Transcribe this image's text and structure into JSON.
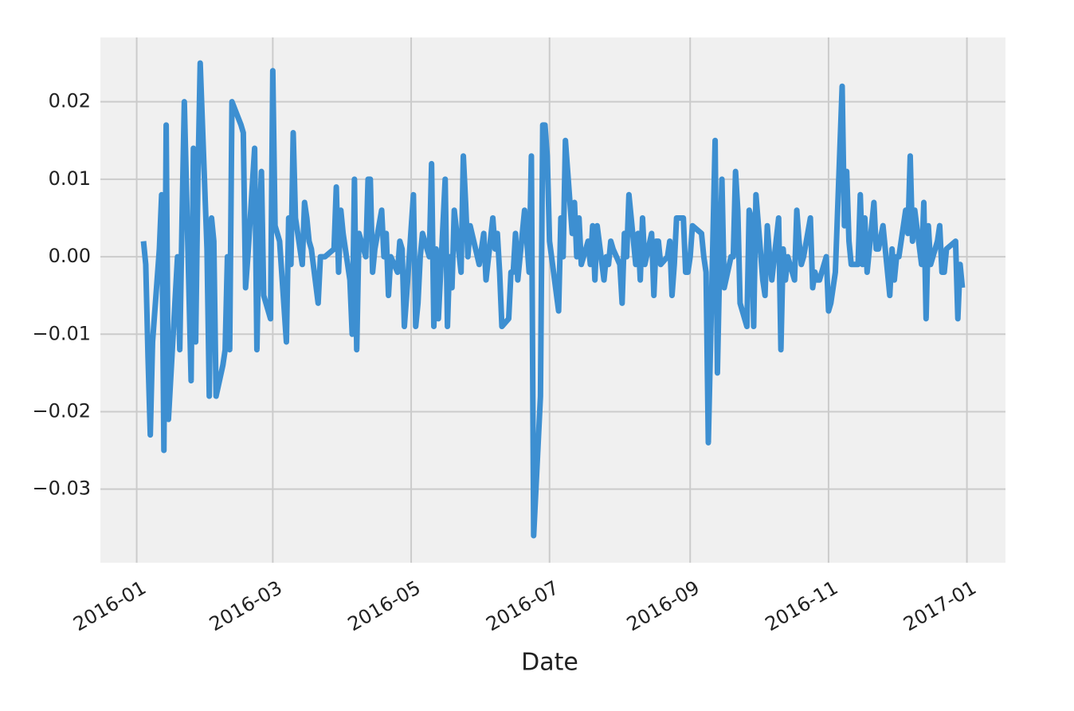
{
  "chart_data": {
    "type": "line",
    "xlabel": "Date",
    "color": "#3d8fd1",
    "grid": true,
    "x": [
      "2016-01-04",
      "2016-01-05",
      "2016-01-06",
      "2016-01-07",
      "2016-01-08",
      "2016-01-11",
      "2016-01-12",
      "2016-01-13",
      "2016-01-14",
      "2016-01-15",
      "2016-01-19",
      "2016-01-20",
      "2016-01-21",
      "2016-01-22",
      "2016-01-25",
      "2016-01-26",
      "2016-01-27",
      "2016-01-28",
      "2016-01-29",
      "2016-02-01",
      "2016-02-02",
      "2016-02-03",
      "2016-02-04",
      "2016-02-05",
      "2016-02-08",
      "2016-02-09",
      "2016-02-10",
      "2016-02-11",
      "2016-02-12",
      "2016-02-16",
      "2016-02-17",
      "2016-02-18",
      "2016-02-19",
      "2016-02-22",
      "2016-02-23",
      "2016-02-24",
      "2016-02-25",
      "2016-02-26",
      "2016-02-29",
      "2016-03-01",
      "2016-03-02",
      "2016-03-03",
      "2016-03-04",
      "2016-03-07",
      "2016-03-08",
      "2016-03-09",
      "2016-03-10",
      "2016-03-11",
      "2016-03-14",
      "2016-03-15",
      "2016-03-16",
      "2016-03-17",
      "2016-03-18",
      "2016-03-21",
      "2016-03-22",
      "2016-03-24",
      "2016-03-28",
      "2016-03-29",
      "2016-03-30",
      "2016-03-31",
      "2016-04-01",
      "2016-04-04",
      "2016-04-05",
      "2016-04-06",
      "2016-04-07",
      "2016-04-08",
      "2016-04-11",
      "2016-04-12",
      "2016-04-13",
      "2016-04-14",
      "2016-04-15",
      "2016-04-18",
      "2016-04-19",
      "2016-04-20",
      "2016-04-21",
      "2016-04-22",
      "2016-04-25",
      "2016-04-26",
      "2016-04-27",
      "2016-04-28",
      "2016-04-29",
      "2016-05-02",
      "2016-05-03",
      "2016-05-04",
      "2016-05-05",
      "2016-05-06",
      "2016-05-09",
      "2016-05-10",
      "2016-05-11",
      "2016-05-12",
      "2016-05-13",
      "2016-05-16",
      "2016-05-17",
      "2016-05-18",
      "2016-05-19",
      "2016-05-20",
      "2016-05-23",
      "2016-05-24",
      "2016-05-25",
      "2016-05-26",
      "2016-05-27",
      "2016-05-31",
      "2016-06-01",
      "2016-06-02",
      "2016-06-03",
      "2016-06-06",
      "2016-06-07",
      "2016-06-08",
      "2016-06-09",
      "2016-06-10",
      "2016-06-13",
      "2016-06-14",
      "2016-06-15",
      "2016-06-16",
      "2016-06-17",
      "2016-06-20",
      "2016-06-21",
      "2016-06-22",
      "2016-06-23",
      "2016-06-24",
      "2016-06-27",
      "2016-06-28",
      "2016-06-29",
      "2016-06-30",
      "2016-07-01",
      "2016-07-05",
      "2016-07-06",
      "2016-07-07",
      "2016-07-08",
      "2016-07-11",
      "2016-07-12",
      "2016-07-13",
      "2016-07-14",
      "2016-07-15",
      "2016-07-18",
      "2016-07-19",
      "2016-07-20",
      "2016-07-21",
      "2016-07-22",
      "2016-07-25",
      "2016-07-26",
      "2016-07-27",
      "2016-07-28",
      "2016-07-29",
      "2016-08-01",
      "2016-08-02",
      "2016-08-03",
      "2016-08-04",
      "2016-08-05",
      "2016-08-08",
      "2016-08-09",
      "2016-08-10",
      "2016-08-11",
      "2016-08-12",
      "2016-08-15",
      "2016-08-16",
      "2016-08-17",
      "2016-08-18",
      "2016-08-19",
      "2016-08-22",
      "2016-08-23",
      "2016-08-24",
      "2016-08-25",
      "2016-08-26",
      "2016-08-29",
      "2016-08-30",
      "2016-08-31",
      "2016-09-01",
      "2016-09-02",
      "2016-09-06",
      "2016-09-07",
      "2016-09-08",
      "2016-09-09",
      "2016-09-12",
      "2016-09-13",
      "2016-09-14",
      "2016-09-15",
      "2016-09-16",
      "2016-09-19",
      "2016-09-20",
      "2016-09-21",
      "2016-09-22",
      "2016-09-23",
      "2016-09-26",
      "2016-09-27",
      "2016-09-28",
      "2016-09-29",
      "2016-09-30",
      "2016-10-03",
      "2016-10-04",
      "2016-10-05",
      "2016-10-06",
      "2016-10-07",
      "2016-10-10",
      "2016-10-11",
      "2016-10-12",
      "2016-10-13",
      "2016-10-14",
      "2016-10-17",
      "2016-10-18",
      "2016-10-19",
      "2016-10-20",
      "2016-10-21",
      "2016-10-24",
      "2016-10-25",
      "2016-10-26",
      "2016-10-27",
      "2016-10-28",
      "2016-10-31",
      "2016-11-01",
      "2016-11-02",
      "2016-11-03",
      "2016-11-04",
      "2016-11-07",
      "2016-11-08",
      "2016-11-09",
      "2016-11-10",
      "2016-11-11",
      "2016-11-14",
      "2016-11-15",
      "2016-11-16",
      "2016-11-17",
      "2016-11-18",
      "2016-11-21",
      "2016-11-22",
      "2016-11-23",
      "2016-11-25",
      "2016-11-28",
      "2016-11-29",
      "2016-11-30",
      "2016-12-01",
      "2016-12-02",
      "2016-12-05",
      "2016-12-06",
      "2016-12-07",
      "2016-12-08",
      "2016-12-09",
      "2016-12-12",
      "2016-12-13",
      "2016-12-14",
      "2016-12-15",
      "2016-12-16",
      "2016-12-19",
      "2016-12-20",
      "2016-12-21",
      "2016-12-22",
      "2016-12-23",
      "2016-12-27",
      "2016-12-28",
      "2016-12-29",
      "2016-12-30"
    ],
    "values": [
      0.002,
      -0.001,
      -0.013,
      -0.023,
      -0.011,
      0.001,
      0.008,
      -0.025,
      0.017,
      -0.021,
      0.0,
      -0.012,
      0.005,
      0.02,
      -0.016,
      0.014,
      -0.011,
      0.01,
      0.025,
      0.001,
      -0.018,
      0.005,
      0.002,
      -0.018,
      -0.014,
      -0.012,
      0.0,
      -0.012,
      0.02,
      0.017,
      0.016,
      -0.004,
      0.0,
      0.014,
      -0.012,
      0.004,
      0.011,
      -0.005,
      -0.008,
      0.024,
      0.004,
      0.003,
      0.002,
      -0.011,
      0.005,
      -0.001,
      0.016,
      0.005,
      -0.001,
      0.007,
      0.005,
      0.002,
      0.001,
      -0.006,
      0.0,
      0.0,
      0.001,
      0.009,
      -0.002,
      0.006,
      0.003,
      -0.003,
      -0.01,
      0.01,
      -0.012,
      0.003,
      0.0,
      0.01,
      0.01,
      -0.002,
      0.001,
      0.006,
      0.0,
      0.003,
      -0.005,
      0.0,
      -0.002,
      0.002,
      0.001,
      -0.009,
      -0.005,
      0.008,
      -0.009,
      -0.006,
      0.0,
      0.003,
      0.0,
      0.012,
      -0.009,
      0.001,
      -0.008,
      0.01,
      -0.009,
      0.0,
      -0.004,
      0.006,
      -0.002,
      0.013,
      0.007,
      0.0,
      0.004,
      -0.001,
      0.001,
      0.003,
      -0.003,
      0.005,
      0.001,
      0.003,
      -0.002,
      -0.009,
      -0.008,
      -0.002,
      -0.002,
      0.003,
      -0.003,
      0.006,
      0.002,
      -0.002,
      0.013,
      -0.036,
      -0.018,
      0.017,
      0.017,
      0.013,
      0.002,
      -0.007,
      0.005,
      0.0,
      0.015,
      0.003,
      0.007,
      0.0,
      0.005,
      -0.001,
      0.002,
      -0.001,
      0.004,
      -0.003,
      0.004,
      -0.003,
      0.0,
      -0.001,
      0.002,
      0.001,
      -0.001,
      -0.006,
      0.003,
      0.0,
      0.008,
      -0.001,
      0.003,
      -0.003,
      0.005,
      -0.001,
      0.003,
      -0.005,
      0.002,
      0.002,
      -0.001,
      0.0,
      0.002,
      -0.005,
      -0.001,
      0.005,
      0.005,
      -0.002,
      -0.002,
      0.0,
      0.004,
      0.003,
      0.0,
      -0.002,
      -0.024,
      0.015,
      -0.015,
      -0.001,
      0.01,
      -0.004,
      0.0,
      0.0,
      0.011,
      0.006,
      -0.006,
      -0.009,
      0.006,
      0.005,
      -0.009,
      0.008,
      -0.003,
      -0.005,
      0.004,
      0.0,
      -0.003,
      0.005,
      -0.012,
      0.001,
      -0.003,
      0.0,
      -0.003,
      0.006,
      0.002,
      -0.001,
      0.0,
      0.005,
      -0.004,
      -0.002,
      -0.003,
      -0.003,
      0.0,
      -0.007,
      -0.006,
      -0.004,
      -0.002,
      0.022,
      0.004,
      0.011,
      0.002,
      -0.001,
      -0.001,
      0.008,
      -0.001,
      0.005,
      -0.002,
      0.007,
      0.001,
      0.001,
      0.004,
      -0.005,
      0.001,
      -0.003,
      0.0,
      0.0,
      0.006,
      0.003,
      0.013,
      0.002,
      0.006,
      -0.001,
      0.007,
      -0.008,
      0.004,
      -0.001,
      0.002,
      0.004,
      -0.002,
      -0.002,
      0.001,
      0.002,
      -0.008,
      -0.001,
      -0.004
    ],
    "xlim": [
      "2015-12-16",
      "2017-01-18"
    ],
    "xticks": [
      "2016-01",
      "2016-03",
      "2016-05",
      "2016-07",
      "2016-09",
      "2016-11",
      "2017-01"
    ],
    "ylim": [
      -0.0395,
      0.0283
    ],
    "yticks": [
      {
        "value": -0.03,
        "label": "−0.03"
      },
      {
        "value": -0.02,
        "label": "−0.02"
      },
      {
        "value": -0.01,
        "label": "−0.01"
      },
      {
        "value": 0,
        "label": "0.00"
      },
      0.01,
      0.02
    ]
  }
}
